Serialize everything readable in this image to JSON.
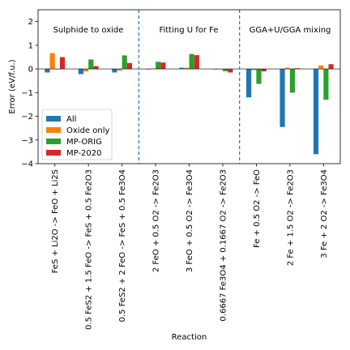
{
  "chart_data": {
    "type": "bar",
    "xlabel": "Reaction",
    "ylabel": "Error (eV/f.u.)",
    "ylim": [
      -4,
      2.5
    ],
    "yticks": [
      -4,
      -3,
      -2,
      -1,
      0,
      1,
      2
    ],
    "grid": false,
    "legend_position": "lower-left",
    "categories": [
      "FeS + Li2O -> FeO + Li2S",
      "0.5 FeS2 + 1.5 FeO -> FeS + 0.5 Fe2O3",
      "0.5 FeS2 + 2 FeO -> FeS + 0.5 Fe3O4",
      "2 FeO + 0.5 O2 -> Fe2O3",
      "3 FeO + 0.5 O2 -> Fe3O4",
      "0.6667 Fe3O4 + 0.1667 O2 -> Fe2O3",
      "Fe + 0.5 O2 -> FeO",
      "2 Fe + 1.5 O2 -> Fe2O3",
      "3 Fe + 2 O2 -> Fe3O4"
    ],
    "series": [
      {
        "name": "All",
        "color": "#1f77b4",
        "values": [
          -0.15,
          -0.22,
          -0.15,
          0.0,
          0.05,
          0.0,
          -1.2,
          -2.45,
          -3.6
        ]
      },
      {
        "name": "Oxide only",
        "color": "#ff7f0e",
        "values": [
          0.67,
          -0.1,
          -0.07,
          0.02,
          0.05,
          0.0,
          -0.05,
          0.05,
          0.15
        ]
      },
      {
        "name": "MP-ORIG",
        "color": "#2ca02c",
        "values": [
          0.0,
          0.4,
          0.57,
          0.3,
          0.63,
          -0.1,
          -0.63,
          -1.0,
          -1.3
        ]
      },
      {
        "name": "MP-2020",
        "color": "#d62728",
        "values": [
          0.5,
          0.12,
          0.25,
          0.27,
          0.58,
          -0.15,
          -0.1,
          0.03,
          0.2
        ]
      }
    ],
    "group_labels": [
      "Sulphide to oxide",
      "Fitting U for Fe",
      "GGA+U/GGA mixing"
    ],
    "group_separators_after": [
      2,
      5
    ]
  }
}
